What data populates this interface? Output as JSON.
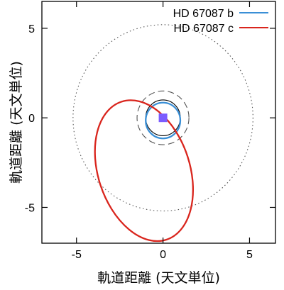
{
  "chart_data": {
    "type": "scatter",
    "title": "",
    "xlabel": "軌道距離 (天文単位)",
    "ylabel": "軌道距離 (天文単位)",
    "xlim": [
      -7.0,
      6.5
    ],
    "ylim": [
      -7.0,
      6.5
    ],
    "xticks": [
      {
        "value": -5,
        "label": "-5"
      },
      {
        "value": 0,
        "label": "0"
      },
      {
        "value": 5,
        "label": "5"
      }
    ],
    "yticks": [
      {
        "value": 5,
        "label": "5"
      },
      {
        "value": 0,
        "label": "0"
      },
      {
        "value": -5,
        "label": "-5"
      }
    ],
    "grid": false,
    "legend_position": "top-right",
    "star": {
      "x": 0,
      "y": 0,
      "color": "#7b5cff"
    },
    "reference_circles": [
      {
        "r": 1.0,
        "style": "solid",
        "color": "#000000"
      },
      {
        "r": 1.5,
        "style": "dashed",
        "color": "#555555"
      },
      {
        "r": 5.2,
        "style": "dotted",
        "color": "#555555"
      }
    ],
    "series": [
      {
        "name": "HD 67087 b",
        "color": "#3a8fd6",
        "orbit": {
          "cx": 0.0,
          "cy": -0.15,
          "rx": 1.0,
          "ry": 1.0,
          "rotation_deg": 0
        }
      },
      {
        "name": "HD 67087 c",
        "color": "#d9251d",
        "orbit": {
          "cx": -1.1,
          "cy": -2.95,
          "rx": 2.65,
          "ry": 4.05,
          "rotation_deg": -18
        }
      }
    ]
  }
}
